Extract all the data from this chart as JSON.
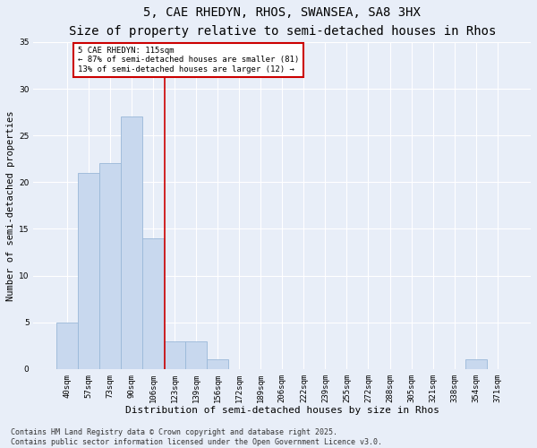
{
  "title1": "5, CAE RHEDYN, RHOS, SWANSEA, SA8 3HX",
  "title2": "Size of property relative to semi-detached houses in Rhos",
  "xlabel": "Distribution of semi-detached houses by size in Rhos",
  "ylabel": "Number of semi-detached properties",
  "categories": [
    "40sqm",
    "57sqm",
    "73sqm",
    "90sqm",
    "106sqm",
    "123sqm",
    "139sqm",
    "156sqm",
    "172sqm",
    "189sqm",
    "206sqm",
    "222sqm",
    "239sqm",
    "255sqm",
    "272sqm",
    "288sqm",
    "305sqm",
    "321sqm",
    "338sqm",
    "354sqm",
    "371sqm"
  ],
  "values": [
    5,
    21,
    22,
    27,
    14,
    3,
    3,
    1,
    0,
    0,
    0,
    0,
    0,
    0,
    0,
    0,
    0,
    0,
    0,
    1,
    0
  ],
  "bar_color": "#c8d8ee",
  "bar_edge_color": "#9ab8d8",
  "vline_x": 4.53,
  "annotation_line1": "5 CAE RHEDYN: 115sqm",
  "annotation_line2": "← 87% of semi-detached houses are smaller (81)",
  "annotation_line3": "13% of semi-detached houses are larger (12) →",
  "annotation_box_color": "#ffffff",
  "annotation_box_edge": "#cc0000",
  "vline_color": "#cc0000",
  "ylim": [
    0,
    35
  ],
  "yticks": [
    0,
    5,
    10,
    15,
    20,
    25,
    30,
    35
  ],
  "footer1": "Contains HM Land Registry data © Crown copyright and database right 2025.",
  "footer2": "Contains public sector information licensed under the Open Government Licence v3.0.",
  "bg_color": "#e8eef8",
  "plot_bg_color": "#e8eef8",
  "grid_color": "#ffffff",
  "title_fontsize": 10,
  "subtitle_fontsize": 9,
  "tick_fontsize": 6.5,
  "ylabel_fontsize": 7.5,
  "xlabel_fontsize": 8,
  "annotation_fontsize": 6.5,
  "footer_fontsize": 6
}
